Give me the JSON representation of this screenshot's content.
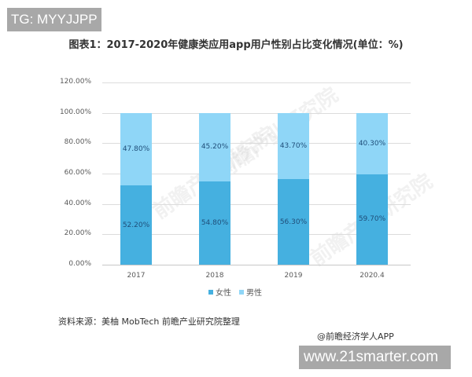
{
  "overlay": {
    "tag": "TG: MYYJJPP",
    "site": "www.21smarter.com"
  },
  "header": {
    "title": "图表1：2017-2020年健康类应用app用户性别占比变化情况(单位：%)"
  },
  "footer": {
    "source": "资料来源：美柚 MobTech 前瞻产业研究院整理",
    "credit": "@前瞻经济学人APP"
  },
  "watermark": "前瞻产业研究院",
  "colors": {
    "female": "#45b0e0",
    "male": "#8fd6f7"
  },
  "chart_data": {
    "type": "bar",
    "stacked": true,
    "title": "图表1：2017-2020年健康类应用app用户性别占比变化情况(单位：%)",
    "xlabel": "",
    "ylabel": "",
    "categories": [
      "2017",
      "2018",
      "2019",
      "2020.4"
    ],
    "series": [
      {
        "name": "女性",
        "values": [
          52.2,
          54.8,
          56.3,
          59.7
        ],
        "labels": [
          "52.20%",
          "54.80%",
          "56.30%",
          "59.70%"
        ],
        "color": "#45b0e0"
      },
      {
        "name": "男性",
        "values": [
          47.8,
          45.2,
          43.7,
          40.3
        ],
        "labels": [
          "47.80%",
          "45.20%",
          "43.70%",
          "40.30%"
        ],
        "color": "#8fd6f7"
      }
    ],
    "ylim": [
      0,
      120
    ],
    "yticks": [
      "0.00%",
      "20.00%",
      "40.00%",
      "60.00%",
      "80.00%",
      "100.00%",
      "120.00%"
    ],
    "grid": true,
    "legend_position": "bottom",
    "legend": [
      "女性",
      "男性"
    ]
  }
}
